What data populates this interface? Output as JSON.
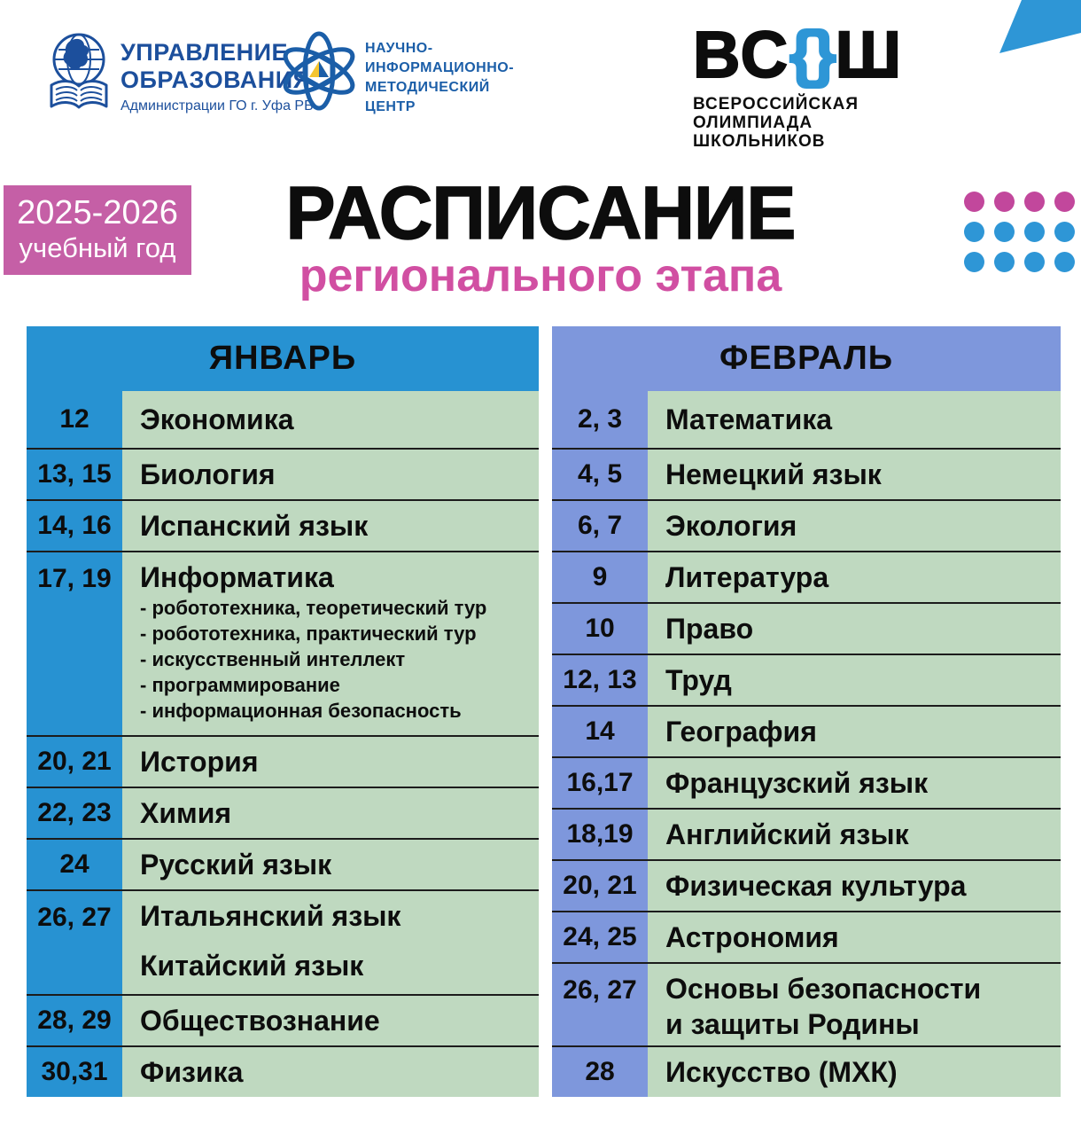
{
  "logos": {
    "uo": {
      "line1": "УПРАВЛЕНИЕ",
      "line2": "ОБРАЗОВАНИЯ",
      "line3": "Администрации ГО г. Уфа РБ"
    },
    "nimc": {
      "lines": [
        "НАУЧНО-",
        "ИНФОРМАЦИОННО-",
        "МЕТОДИЧЕСКИЙ",
        "ЦЕНТР"
      ]
    },
    "vsosh": {
      "left": "ВС",
      "brace_open": "{",
      "brace_close": "}",
      "right": "Ш",
      "sub_lines": [
        "ВСЕРОССИЙСКАЯ",
        "ОЛИМПИАДА",
        "ШКОЛЬНИКОВ"
      ]
    }
  },
  "header": {
    "badge": {
      "line1": "2025-2026",
      "line2": "учебный год"
    },
    "title": "РАСПИСАНИЕ",
    "subtitle": "регионального этапа",
    "dots": {
      "cols": 4,
      "row_colors": [
        "#c2479c",
        "#2e96d6",
        "#2e96d6"
      ]
    }
  },
  "colors": {
    "jan_accent": "#2792d2",
    "feb_accent": "#7e97dc",
    "cell_green": "#bfd9c0",
    "row_line": "#1c1c1c",
    "badge_pink": "#c55fa6",
    "title_pink": "#d14fa2",
    "dot_pink": "#c2479c",
    "accent_blue": "#2e96d6",
    "logo_navy": "#1c4f9c",
    "nimc_blue": "#1b5ea8"
  },
  "months": [
    {
      "name": "ЯНВАРЬ",
      "accent": "#2792d2",
      "rows": [
        {
          "date": "12",
          "subject": "Экономика"
        },
        {
          "date": "13, 15",
          "subject": "Биология"
        },
        {
          "date": "14, 16",
          "subject": "Испанский язык"
        },
        {
          "date": "17, 19",
          "subject": "Информатика",
          "subitems": [
            "- робототехника, теоретический тур",
            "- робототехника, практический тур",
            "- искусственный интеллект",
            "- программирование",
            "- информационная безопасность"
          ]
        },
        {
          "date": "20, 21",
          "subject": "История"
        },
        {
          "date": "22, 23",
          "subject": "Химия"
        },
        {
          "date": "24",
          "subject": "Русский язык"
        },
        {
          "date": "26, 27",
          "subjects": [
            "Итальянский язык",
            "Китайский язык"
          ]
        },
        {
          "date": "28, 29",
          "subject": "Обществознание"
        },
        {
          "date": "30,31",
          "subject": "Физика"
        }
      ]
    },
    {
      "name": "ФЕВРАЛЬ",
      "accent": "#7e97dc",
      "rows": [
        {
          "date": "2, 3",
          "subject": "Математика"
        },
        {
          "date": "4, 5",
          "subject": "Немецкий язык"
        },
        {
          "date": "6, 7",
          "subject": "Экология"
        },
        {
          "date": "9",
          "subject": "Литература"
        },
        {
          "date": "10",
          "subject": "Право"
        },
        {
          "date": "12, 13",
          "subject": "Труд"
        },
        {
          "date": "14",
          "subject": "География"
        },
        {
          "date": "16,17",
          "subject": "Французский язык"
        },
        {
          "date": "18,19",
          "subject": "Английский язык"
        },
        {
          "date": "20, 21",
          "subject": "Физическая культура"
        },
        {
          "date": "24, 25",
          "subject": "Астрономия"
        },
        {
          "date": "26, 27",
          "lines": [
            "Основы безопасности",
            "и защиты Родины"
          ]
        },
        {
          "date": "28",
          "subject": "Искусство (МХК)"
        }
      ]
    }
  ]
}
